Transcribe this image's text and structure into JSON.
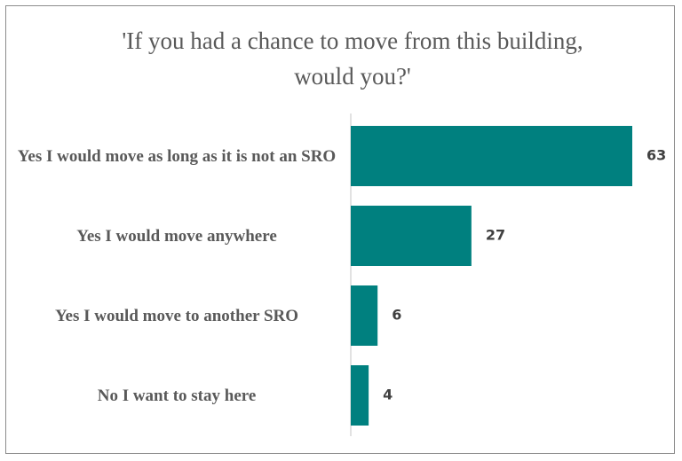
{
  "chart_data": {
    "type": "bar",
    "orientation": "horizontal",
    "title": "'If you had a chance to move from this building, would you?'",
    "categories": [
      "Yes I would move as long as it is not an SRO",
      "Yes I would move anywhere",
      "Yes I would move to another SRO",
      "No I want to stay here"
    ],
    "values": [
      63,
      27,
      6,
      4
    ],
    "color": "#00807f"
  }
}
